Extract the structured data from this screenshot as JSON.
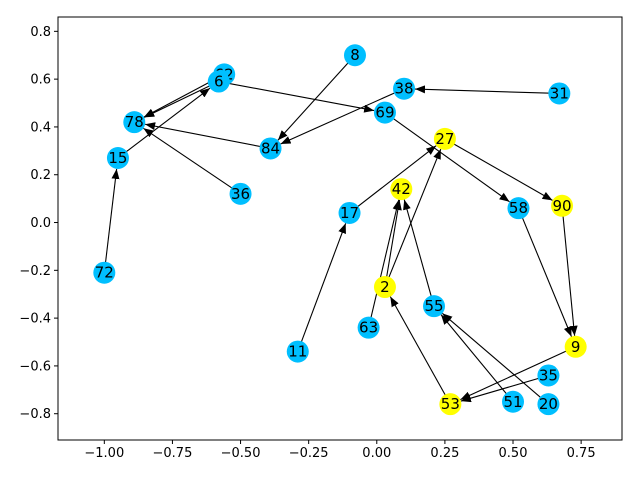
{
  "chart_data": {
    "type": "network-graph",
    "xlim": [
      -1.17,
      0.9
    ],
    "ylim": [
      -0.91,
      0.86
    ],
    "x_ticks": [
      {
        "value": -1.0,
        "label": "−1.00"
      },
      {
        "value": -0.75,
        "label": "−0.75"
      },
      {
        "value": -0.5,
        "label": "−0.50"
      },
      {
        "value": -0.25,
        "label": "−0.25"
      },
      {
        "value": 0.0,
        "label": "0.00"
      },
      {
        "value": 0.25,
        "label": "0.25"
      },
      {
        "value": 0.5,
        "label": "0.50"
      },
      {
        "value": 0.75,
        "label": "0.75"
      }
    ],
    "y_ticks": [
      {
        "value": -0.8,
        "label": "−0.8"
      },
      {
        "value": -0.6,
        "label": "−0.6"
      },
      {
        "value": -0.4,
        "label": "−0.4"
      },
      {
        "value": -0.2,
        "label": "−0.2"
      },
      {
        "value": 0.0,
        "label": "0.0"
      },
      {
        "value": 0.2,
        "label": "0.2"
      },
      {
        "value": 0.4,
        "label": "0.4"
      },
      {
        "value": 0.6,
        "label": "0.6"
      },
      {
        "value": 0.8,
        "label": "0.8"
      }
    ],
    "colors": {
      "blue_node": "#00bfff",
      "yellow_node": "#ffff00",
      "edge": "#000000",
      "axes": "#000000"
    },
    "nodes": [
      {
        "id": "8",
        "x": -0.08,
        "y": 0.7,
        "color": "blue"
      },
      {
        "id": "62",
        "x": -0.56,
        "y": 0.62,
        "color": "blue"
      },
      {
        "id": "6",
        "x": -0.58,
        "y": 0.59,
        "color": "blue"
      },
      {
        "id": "38",
        "x": 0.1,
        "y": 0.56,
        "color": "blue"
      },
      {
        "id": "31",
        "x": 0.67,
        "y": 0.54,
        "color": "blue"
      },
      {
        "id": "78",
        "x": -0.89,
        "y": 0.42,
        "color": "blue"
      },
      {
        "id": "69",
        "x": 0.03,
        "y": 0.46,
        "color": "blue"
      },
      {
        "id": "27",
        "x": 0.25,
        "y": 0.35,
        "color": "yellow"
      },
      {
        "id": "84",
        "x": -0.39,
        "y": 0.31,
        "color": "blue"
      },
      {
        "id": "15",
        "x": -0.95,
        "y": 0.27,
        "color": "blue"
      },
      {
        "id": "36",
        "x": -0.5,
        "y": 0.12,
        "color": "blue"
      },
      {
        "id": "42",
        "x": 0.09,
        "y": 0.14,
        "color": "yellow"
      },
      {
        "id": "17",
        "x": -0.1,
        "y": 0.04,
        "color": "blue"
      },
      {
        "id": "58",
        "x": 0.52,
        "y": 0.06,
        "color": "blue"
      },
      {
        "id": "90",
        "x": 0.68,
        "y": 0.07,
        "color": "yellow"
      },
      {
        "id": "72",
        "x": -1.0,
        "y": -0.21,
        "color": "blue"
      },
      {
        "id": "2",
        "x": 0.03,
        "y": -0.27,
        "color": "yellow"
      },
      {
        "id": "55",
        "x": 0.21,
        "y": -0.35,
        "color": "blue"
      },
      {
        "id": "63",
        "x": -0.03,
        "y": -0.44,
        "color": "blue"
      },
      {
        "id": "11",
        "x": -0.29,
        "y": -0.54,
        "color": "blue"
      },
      {
        "id": "9",
        "x": 0.73,
        "y": -0.52,
        "color": "yellow"
      },
      {
        "id": "35",
        "x": 0.63,
        "y": -0.64,
        "color": "blue"
      },
      {
        "id": "53",
        "x": 0.27,
        "y": -0.76,
        "color": "yellow"
      },
      {
        "id": "51",
        "x": 0.5,
        "y": -0.75,
        "color": "blue"
      },
      {
        "id": "20",
        "x": 0.63,
        "y": -0.76,
        "color": "blue"
      }
    ],
    "edges": [
      {
        "from": "72",
        "to": "15"
      },
      {
        "from": "15",
        "to": "6"
      },
      {
        "from": "6",
        "to": "78"
      },
      {
        "from": "62",
        "to": "78"
      },
      {
        "from": "6",
        "to": "69"
      },
      {
        "from": "84",
        "to": "78"
      },
      {
        "from": "36",
        "to": "78"
      },
      {
        "from": "8",
        "to": "84"
      },
      {
        "from": "38",
        "to": "84"
      },
      {
        "from": "31",
        "to": "38"
      },
      {
        "from": "69",
        "to": "58"
      },
      {
        "from": "58",
        "to": "9"
      },
      {
        "from": "27",
        "to": "90"
      },
      {
        "from": "90",
        "to": "9"
      },
      {
        "from": "17",
        "to": "27"
      },
      {
        "from": "11",
        "to": "17"
      },
      {
        "from": "2",
        "to": "27"
      },
      {
        "from": "2",
        "to": "42"
      },
      {
        "from": "63",
        "to": "42"
      },
      {
        "from": "55",
        "to": "42"
      },
      {
        "from": "53",
        "to": "2"
      },
      {
        "from": "9",
        "to": "53"
      },
      {
        "from": "35",
        "to": "53"
      },
      {
        "from": "51",
        "to": "55"
      },
      {
        "from": "20",
        "to": "55"
      }
    ]
  }
}
